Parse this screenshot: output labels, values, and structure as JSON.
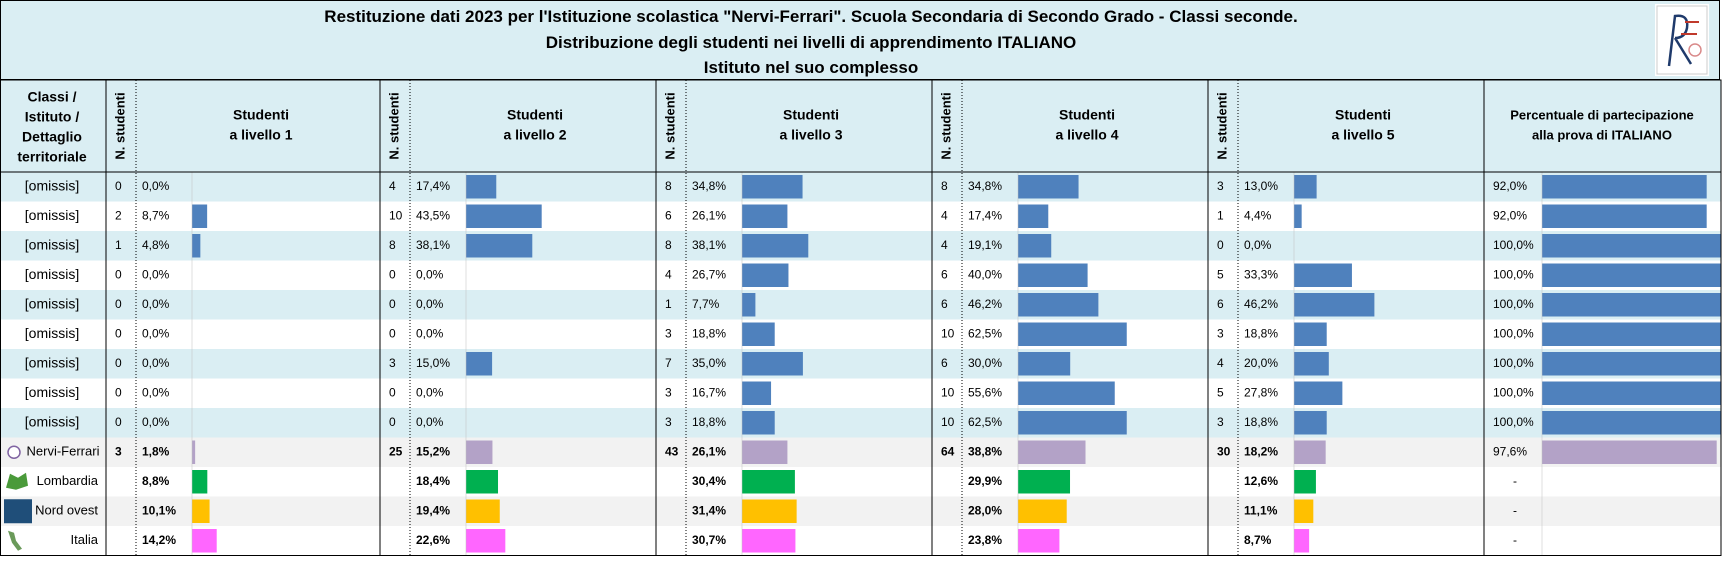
{
  "title": {
    "line1": "Restituzione dati 2023 per l'Istituzione scolastica \"Nervi-Ferrari\". Scuola Secondaria di Secondo Grado - Classi seconde.",
    "line2": "Distribuzione degli studenti nei livelli di apprendimento ITALIANO",
    "line3": "Istituto nel suo complesso"
  },
  "headers": {
    "row_label": [
      "Classi /",
      "Istituto /",
      "Dettaglio",
      "territoriale"
    ],
    "count_label": "N. studenti",
    "levels": [
      [
        "Studenti",
        "a livello 1"
      ],
      [
        "Studenti",
        "a livello 2"
      ],
      [
        "Studenti",
        "a livello 3"
      ],
      [
        "Studenti",
        "a livello 4"
      ],
      [
        "Studenti",
        "a livello 5"
      ]
    ],
    "participation": [
      "Percentuale di partecipazione",
      "alla prova di ITALIANO"
    ]
  },
  "colors": {
    "header_bg": "#daeef3",
    "row_alt_bg": "#daeef3",
    "class_bar": "#4f81bd",
    "school_bar": "#b3a2c7",
    "school_row_bg": "#f2f2f2",
    "lombardia": "#00b050",
    "nord_ovest": "#ffc000",
    "italia": "#ff66ff"
  },
  "chart_data": {
    "type": "table",
    "rows": [
      {
        "label": "[omissis]",
        "kind": "class",
        "levels": [
          {
            "n": "0",
            "pct": "0,0%",
            "v": 0.0
          },
          {
            "n": "4",
            "pct": "17,4%",
            "v": 17.4
          },
          {
            "n": "8",
            "pct": "34,8%",
            "v": 34.8
          },
          {
            "n": "8",
            "pct": "34,8%",
            "v": 34.8
          },
          {
            "n": "3",
            "pct": "13,0%",
            "v": 13.0
          }
        ],
        "part": "92,0%",
        "part_v": 92.0
      },
      {
        "label": "[omissis]",
        "kind": "class",
        "levels": [
          {
            "n": "2",
            "pct": "8,7%",
            "v": 8.7
          },
          {
            "n": "10",
            "pct": "43,5%",
            "v": 43.5
          },
          {
            "n": "6",
            "pct": "26,1%",
            "v": 26.1
          },
          {
            "n": "4",
            "pct": "17,4%",
            "v": 17.4
          },
          {
            "n": "1",
            "pct": "4,4%",
            "v": 4.4
          }
        ],
        "part": "92,0%",
        "part_v": 92.0
      },
      {
        "label": "[omissis]",
        "kind": "class",
        "levels": [
          {
            "n": "1",
            "pct": "4,8%",
            "v": 4.8
          },
          {
            "n": "8",
            "pct": "38,1%",
            "v": 38.1
          },
          {
            "n": "8",
            "pct": "38,1%",
            "v": 38.1
          },
          {
            "n": "4",
            "pct": "19,1%",
            "v": 19.1
          },
          {
            "n": "0",
            "pct": "0,0%",
            "v": 0.0
          }
        ],
        "part": "100,0%",
        "part_v": 100.0
      },
      {
        "label": "[omissis]",
        "kind": "class",
        "levels": [
          {
            "n": "0",
            "pct": "0,0%",
            "v": 0.0
          },
          {
            "n": "0",
            "pct": "0,0%",
            "v": 0.0
          },
          {
            "n": "4",
            "pct": "26,7%",
            "v": 26.7
          },
          {
            "n": "6",
            "pct": "40,0%",
            "v": 40.0
          },
          {
            "n": "5",
            "pct": "33,3%",
            "v": 33.3
          }
        ],
        "part": "100,0%",
        "part_v": 100.0
      },
      {
        "label": "[omissis]",
        "kind": "class",
        "levels": [
          {
            "n": "0",
            "pct": "0,0%",
            "v": 0.0
          },
          {
            "n": "0",
            "pct": "0,0%",
            "v": 0.0
          },
          {
            "n": "1",
            "pct": "7,7%",
            "v": 7.7
          },
          {
            "n": "6",
            "pct": "46,2%",
            "v": 46.2
          },
          {
            "n": "6",
            "pct": "46,2%",
            "v": 46.2
          }
        ],
        "part": "100,0%",
        "part_v": 100.0
      },
      {
        "label": "[omissis]",
        "kind": "class",
        "levels": [
          {
            "n": "0",
            "pct": "0,0%",
            "v": 0.0
          },
          {
            "n": "0",
            "pct": "0,0%",
            "v": 0.0
          },
          {
            "n": "3",
            "pct": "18,8%",
            "v": 18.8
          },
          {
            "n": "10",
            "pct": "62,5%",
            "v": 62.5
          },
          {
            "n": "3",
            "pct": "18,8%",
            "v": 18.8
          }
        ],
        "part": "100,0%",
        "part_v": 100.0
      },
      {
        "label": "[omissis]",
        "kind": "class",
        "levels": [
          {
            "n": "0",
            "pct": "0,0%",
            "v": 0.0
          },
          {
            "n": "3",
            "pct": "15,0%",
            "v": 15.0
          },
          {
            "n": "7",
            "pct": "35,0%",
            "v": 35.0
          },
          {
            "n": "6",
            "pct": "30,0%",
            "v": 30.0
          },
          {
            "n": "4",
            "pct": "20,0%",
            "v": 20.0
          }
        ],
        "part": "100,0%",
        "part_v": 100.0
      },
      {
        "label": "[omissis]",
        "kind": "class",
        "levels": [
          {
            "n": "0",
            "pct": "0,0%",
            "v": 0.0
          },
          {
            "n": "0",
            "pct": "0,0%",
            "v": 0.0
          },
          {
            "n": "3",
            "pct": "16,7%",
            "v": 16.7
          },
          {
            "n": "10",
            "pct": "55,6%",
            "v": 55.6
          },
          {
            "n": "5",
            "pct": "27,8%",
            "v": 27.8
          }
        ],
        "part": "100,0%",
        "part_v": 100.0
      },
      {
        "label": "[omissis]",
        "kind": "class",
        "levels": [
          {
            "n": "0",
            "pct": "0,0%",
            "v": 0.0
          },
          {
            "n": "0",
            "pct": "0,0%",
            "v": 0.0
          },
          {
            "n": "3",
            "pct": "18,8%",
            "v": 18.8
          },
          {
            "n": "10",
            "pct": "62,5%",
            "v": 62.5
          },
          {
            "n": "3",
            "pct": "18,8%",
            "v": 18.8
          }
        ],
        "part": "100,0%",
        "part_v": 100.0
      },
      {
        "label": "Nervi-Ferrari",
        "kind": "school",
        "levels": [
          {
            "n": "3",
            "pct": "1,8%",
            "v": 1.8
          },
          {
            "n": "25",
            "pct": "15,2%",
            "v": 15.2
          },
          {
            "n": "43",
            "pct": "26,1%",
            "v": 26.1
          },
          {
            "n": "64",
            "pct": "38,8%",
            "v": 38.8
          },
          {
            "n": "30",
            "pct": "18,2%",
            "v": 18.2
          }
        ],
        "part": "97,6%",
        "part_v": 97.6
      },
      {
        "label": "Lombardia",
        "kind": "lombardia",
        "levels": [
          {
            "n": "",
            "pct": "8,8%",
            "v": 8.8
          },
          {
            "n": "",
            "pct": "18,4%",
            "v": 18.4
          },
          {
            "n": "",
            "pct": "30,4%",
            "v": 30.4
          },
          {
            "n": "",
            "pct": "29,9%",
            "v": 29.9
          },
          {
            "n": "",
            "pct": "12,6%",
            "v": 12.6
          }
        ],
        "part": "-",
        "part_v": null
      },
      {
        "label": "Nord ovest",
        "kind": "nord_ovest",
        "levels": [
          {
            "n": "",
            "pct": "10,1%",
            "v": 10.1
          },
          {
            "n": "",
            "pct": "19,4%",
            "v": 19.4
          },
          {
            "n": "",
            "pct": "31,4%",
            "v": 31.4
          },
          {
            "n": "",
            "pct": "28,0%",
            "v": 28.0
          },
          {
            "n": "",
            "pct": "11,1%",
            "v": 11.1
          }
        ],
        "part": "-",
        "part_v": null
      },
      {
        "label": "Italia",
        "kind": "italia",
        "levels": [
          {
            "n": "",
            "pct": "14,2%",
            "v": 14.2
          },
          {
            "n": "",
            "pct": "22,6%",
            "v": 22.6
          },
          {
            "n": "",
            "pct": "30,7%",
            "v": 30.7
          },
          {
            "n": "",
            "pct": "23,8%",
            "v": 23.8
          },
          {
            "n": "",
            "pct": "8,7%",
            "v": 8.7
          }
        ],
        "part": "-",
        "part_v": null
      }
    ]
  }
}
